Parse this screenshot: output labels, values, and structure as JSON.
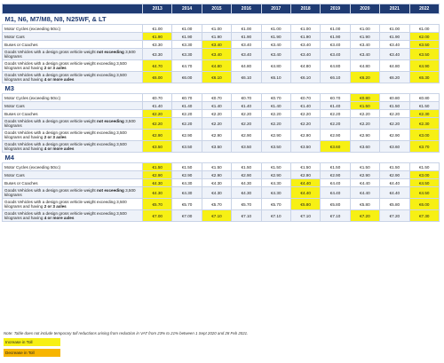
{
  "years": [
    "2013",
    "2014",
    "2015",
    "2016",
    "2017",
    "2018",
    "2019",
    "2020",
    "2021",
    "2022"
  ],
  "sections": [
    {
      "title": "M1, N6, M7/M8, N8, N25WF, & LT",
      "rows": [
        {
          "label": "Motor Cycles (exceeding 50cc)",
          "values": [
            "€1.00",
            "€1.00",
            "€1.00",
            "€1.00",
            "€1.00",
            "€1.00",
            "€1.00",
            "€1.00",
            "€1.00",
            "€1.00"
          ],
          "hl": [
            0,
            0,
            0,
            0,
            0,
            0,
            0,
            0,
            0,
            0
          ],
          "tall": false
        },
        {
          "label": "Motor Cars",
          "values": [
            "€1.90",
            "€1.90",
            "€1.90",
            "€1.90",
            "€1.90",
            "€1.90",
            "€1.90",
            "€1.90",
            "€1.90",
            "€2.00"
          ],
          "hl": [
            1,
            0,
            0,
            0,
            0,
            0,
            0,
            0,
            0,
            1
          ],
          "tall": false
        },
        {
          "label": "Buses or Coaches",
          "values": [
            "€3.30",
            "€3.30",
            "€3.40",
            "€3.40",
            "€3.40",
            "€3.40",
            "€3.40",
            "€3.40",
            "€3.40",
            "€3.50"
          ],
          "hl": [
            0,
            0,
            1,
            0,
            0,
            0,
            0,
            0,
            0,
            1
          ],
          "tall": false
        },
        {
          "label": "Goods Vehicles with a design gross vehicle weight not exceeding 3,500 kilograms",
          "values": [
            "€3.30",
            "€3.30",
            "€3.40",
            "€3.40",
            "€3.40",
            "€3.40",
            "€3.40",
            "€3.40",
            "€3.40",
            "€3.50"
          ],
          "hl": [
            0,
            0,
            1,
            0,
            0,
            0,
            0,
            0,
            0,
            1
          ],
          "tall": true
        },
        {
          "label": "Goods Vehicles with a design gross vehicle weight exceeding 3,500 kilograms and having 2 or 3 axles",
          "values": [
            "€4.70",
            "€4.70",
            "€4.80",
            "€4.80",
            "€4.80",
            "€4.80",
            "€4.80",
            "€4.80",
            "€4.80",
            "€4.90"
          ],
          "hl": [
            1,
            0,
            1,
            0,
            0,
            0,
            0,
            0,
            0,
            1
          ],
          "tall": true
        },
        {
          "label": "Goods Vehicles with a design gross vehicle weight exceeding 3,500 kilograms and having 4 or more axles",
          "values": [
            "€6.00",
            "€6.00",
            "€6.10",
            "€6.10",
            "€6.10",
            "€6.10",
            "€6.10",
            "€6.20",
            "€6.20",
            "€6.30"
          ],
          "hl": [
            1,
            0,
            1,
            0,
            0,
            0,
            0,
            1,
            0,
            1
          ],
          "tall": true
        }
      ]
    },
    {
      "title": "M3",
      "rows": [
        {
          "label": "Motor Cycles (exceeding 50cc)",
          "values": [
            "€0.70",
            "€0.70",
            "€0.70",
            "€0.70",
            "€0.70",
            "€0.70",
            "€0.70",
            "€0.80",
            "€0.80",
            "€0.80"
          ],
          "hl": [
            0,
            0,
            0,
            0,
            0,
            0,
            0,
            1,
            0,
            0
          ],
          "tall": false
        },
        {
          "label": "Motor Cars",
          "values": [
            "€1.40",
            "€1.40",
            "€1.40",
            "€1.40",
            "€1.40",
            "€1.40",
            "€1.40",
            "€1.50",
            "€1.50",
            "€1.50"
          ],
          "hl": [
            0,
            0,
            0,
            0,
            0,
            0,
            0,
            1,
            0,
            0
          ],
          "tall": false
        },
        {
          "label": "Buses or Coaches",
          "values": [
            "€2.20",
            "€2.20",
            "€2.20",
            "€2.20",
            "€2.20",
            "€2.20",
            "€2.20",
            "€2.20",
            "€2.20",
            "€2.30"
          ],
          "hl": [
            1,
            0,
            0,
            0,
            0,
            0,
            0,
            0,
            0,
            1
          ],
          "tall": false
        },
        {
          "label": "Goods Vehicles with a design gross vehicle weight not exceeding 3,500 kilograms",
          "values": [
            "€2.20",
            "€2.20",
            "€2.20",
            "€2.20",
            "€2.20",
            "€2.20",
            "€2.20",
            "€2.20",
            "€2.20",
            "€2.30"
          ],
          "hl": [
            1,
            0,
            0,
            0,
            0,
            0,
            0,
            0,
            0,
            1
          ],
          "tall": true
        },
        {
          "label": "Goods Vehicles with a design gross vehicle weight exceeding 3,500 kilograms and having 2 or 3 axles",
          "values": [
            "€2.90",
            "€2.90",
            "€2.90",
            "€2.90",
            "€2.90",
            "€2.90",
            "€2.90",
            "€2.90",
            "€2.90",
            "€3.00"
          ],
          "hl": [
            1,
            0,
            0,
            0,
            0,
            0,
            0,
            0,
            0,
            1
          ],
          "tall": true
        },
        {
          "label": "Goods Vehicles with a design gross vehicle weight exceeding 3,500 kilograms and having 4 or more axles",
          "values": [
            "€3.50",
            "€3.50",
            "€3.50",
            "€3.50",
            "€3.50",
            "€3.50",
            "€3.60",
            "€3.60",
            "€3.60",
            "€3.70"
          ],
          "hl": [
            1,
            0,
            0,
            0,
            0,
            0,
            1,
            0,
            0,
            1
          ],
          "tall": true
        }
      ]
    },
    {
      "title": "M4",
      "rows": [
        {
          "label": "Motor Cycles (exceeding 50cc)",
          "values": [
            "€1.50",
            "€1.50",
            "€1.50",
            "€1.50",
            "€1.50",
            "€1.50",
            "€1.50",
            "€1.50",
            "€1.50",
            "€1.50"
          ],
          "hl": [
            1,
            0,
            0,
            0,
            0,
            0,
            0,
            0,
            0,
            0
          ],
          "tall": false
        },
        {
          "label": "Motor Cars",
          "values": [
            "€2.90",
            "€2.90",
            "€2.90",
            "€2.90",
            "€2.90",
            "€2.90",
            "€2.90",
            "€2.90",
            "€2.90",
            "€3.00"
          ],
          "hl": [
            1,
            0,
            0,
            0,
            0,
            0,
            0,
            0,
            0,
            1
          ],
          "tall": false
        },
        {
          "label": "Buses or Coaches",
          "values": [
            "€4.30",
            "€4.30",
            "€4.30",
            "€4.30",
            "€4.30",
            "€4.40",
            "€4.40",
            "€4.40",
            "€4.40",
            "€4.50"
          ],
          "hl": [
            1,
            0,
            0,
            0,
            0,
            1,
            0,
            0,
            0,
            1
          ],
          "tall": false
        },
        {
          "label": "Goods Vehicles with a design gross vehicle weight not exceeding 3,500 kilograms",
          "values": [
            "€4.30",
            "€4.30",
            "€4.30",
            "€4.30",
            "€4.30",
            "€4.40",
            "€4.40",
            "€4.40",
            "€4.40",
            "€4.50"
          ],
          "hl": [
            1,
            0,
            0,
            0,
            0,
            1,
            0,
            0,
            0,
            1
          ],
          "tall": true
        },
        {
          "label": "Goods Vehicles with a design gross vehicle weight exceeding 3,500 kilograms and having 2 or 3 axles",
          "values": [
            "€5.70",
            "€5.70",
            "€5.70",
            "€5.70",
            "€5.70",
            "€5.80",
            "€5.80",
            "€5.80",
            "€5.80",
            "€6.00"
          ],
          "hl": [
            1,
            0,
            0,
            0,
            0,
            1,
            0,
            0,
            0,
            1
          ],
          "tall": true
        },
        {
          "label": "Goods Vehicles with a design gross vehicle weight exceeding 3,500 kilograms and having 4 or more axles",
          "values": [
            "€7.00",
            "€7.00",
            "€7.10",
            "€7.10",
            "€7.10",
            "€7.10",
            "€7.10",
            "€7.20",
            "€7.20",
            "€7.30"
          ],
          "hl": [
            1,
            0,
            1,
            0,
            0,
            0,
            0,
            1,
            0,
            1
          ],
          "tall": true
        }
      ]
    }
  ],
  "note": "Note: Table does not include temporary toll reductions arising from reduction in VAT from 23% to 21% between 1 Sept 2020 and 28 Feb 2021.",
  "legend": {
    "increase": "Increase in Toll",
    "decrease": "Decrease in Toll",
    "increase_color": "#f7f014",
    "decrease_color": "#f7b500"
  }
}
